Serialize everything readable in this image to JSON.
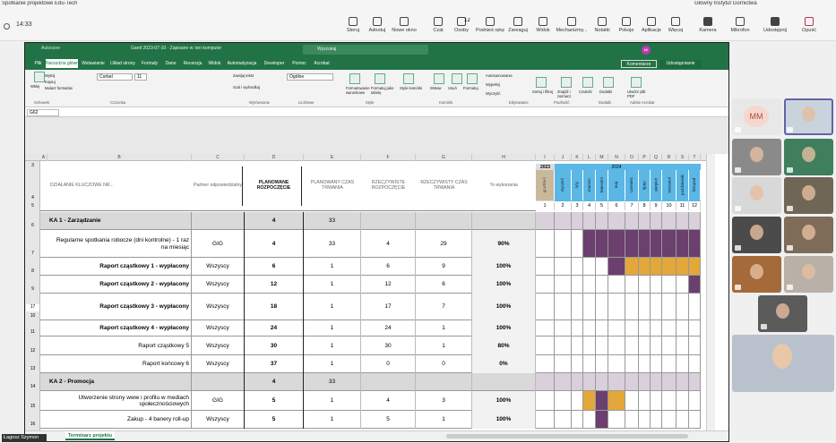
{
  "window": {
    "title": "Spotkanie projektowe Edu-Tech",
    "organization": "Główny Instytut Górnictwa",
    "time": "14:33"
  },
  "toolbar": {
    "buttons": [
      "Steruj",
      "Adnotuj",
      "Nowe okno",
      "Czat",
      "Osoby",
      "Podnieś rękę",
      "Zareaguj",
      "Widok",
      "Mechanizmy...",
      "Notatki",
      "Pokoje",
      "Aplikacje",
      "Więcej",
      "Kamera",
      "Mikrofon",
      "Udostępnij",
      "Opuść"
    ],
    "people_count": "12"
  },
  "excel": {
    "autosave": "Autosave",
    "file_name": "Gantt 2023-07-10 - Zapisane w: ten komputer",
    "search": "Wyszukaj",
    "avatar": "MI",
    "tabs": [
      "Plik",
      "Narzędzia główne",
      "Wstawianie",
      "Układ strony",
      "Formuły",
      "Dane",
      "Recenzja",
      "Widok",
      "Automatyzacja",
      "Developer",
      "Pomoc",
      "Acrobat"
    ],
    "comments": "Komentarze",
    "share": "Udostępnianie",
    "font": "Corbel",
    "font_size": "11",
    "number_format": "Ogólne",
    "ribbon_buttons": [
      "Wklej",
      "Wytnij",
      "Kopiuj",
      "Malarz formatów",
      "Zawijaj tekst",
      "Scal i wyśrodkuj",
      "Formatowanie warunkowe",
      "Formatuj jako tabelę",
      "Style komórki",
      "Wstaw",
      "Usuń",
      "Formatuj",
      "Autosumowanie",
      "Wypełnij",
      "Wyczyść",
      "Sortuj i filtruj",
      "Znajdź i zaznacz",
      "Czułość",
      "Dodatki",
      "Utwórz plik PDF"
    ],
    "ribbon_groups": [
      "Schowek",
      "Czcionka",
      "Wyrównanie",
      "Liczbowe",
      "Style",
      "Komórki",
      "Edytowanie",
      "Poufność",
      "Dodatki",
      "Adobe Acrobat"
    ],
    "cell_ref": "G62",
    "sheet_tab": "Terminarz projektu"
  },
  "sheet": {
    "column_letters": [
      "A",
      "B",
      "C",
      "D",
      "E",
      "F",
      "G",
      "H",
      "I",
      "J",
      "K",
      "L",
      "M",
      "N",
      "O",
      "P",
      "Q",
      "R",
      "S",
      "T"
    ],
    "header_row_numbers": [
      "3",
      "4",
      "5"
    ],
    "headers": [
      "DZIAŁANIE KLUCZOWE NR...",
      "Partner odpowiedzialny",
      "PLANOWANE ROZPOCZĘCIE",
      "PLANOWANY CZAS TRWANIA",
      "RZECZYWISTE ROZPOCZĘCIE",
      "RZECZYWISTY CZAS TRWANIA",
      "% wykonania"
    ],
    "year_2023": "2023",
    "year_2024": "2024",
    "months": [
      "grudzień",
      "styczeń",
      "luty",
      "marzec",
      "kwiecień",
      "maj",
      "czerwiec",
      "lipiec",
      "sierpień",
      "wrzesień",
      "październik",
      "listopad"
    ],
    "month_numbers": [
      1,
      2,
      3,
      4,
      5,
      6,
      7,
      8,
      9,
      10,
      11,
      12
    ],
    "outline_number": "17",
    "rows": [
      {
        "row": "6",
        "name": "KA 1 - Zarządzanie",
        "plan_start": 4,
        "plan_duration": 33,
        "section": true
      },
      {
        "row": "7",
        "name": "Regularne spotkania robocze (dni kontrolne) - 1 raz na miesiąc",
        "partner": "GIG",
        "plan_start": 4,
        "plan_duration": 33,
        "actual_start": 4,
        "actual_duration": 29,
        "completion": "90%"
      },
      {
        "row": "8",
        "name": "Raport cząstkowy 1 - wypłacony",
        "partner": "Wszyscy",
        "plan_start": 6,
        "plan_duration": 1,
        "actual_start": 6,
        "actual_duration": 9,
        "completion": "100%",
        "bold": true
      },
      {
        "row": "9",
        "name": "Raport cząstkowy 2 - wypłacony",
        "partner": "Wszyscy",
        "plan_start": 12,
        "plan_duration": 1,
        "actual_start": 12,
        "actual_duration": 6,
        "completion": "100%",
        "bold": true
      },
      {
        "row": "10",
        "name": "Raport cząstkowy 3 - wypłacony",
        "partner": "Wszyscy",
        "plan_start": 18,
        "plan_duration": 1,
        "actual_start": 17,
        "actual_duration": 7,
        "completion": "100%",
        "bold": true
      },
      {
        "row": "11",
        "name": "Raport cząstkowy 4 - wypłacony",
        "partner": "Wszyscy",
        "plan_start": 24,
        "plan_duration": 1,
        "actual_start": 24,
        "actual_duration": 1,
        "completion": "100%",
        "bold": true
      },
      {
        "row": "12",
        "name": "Raport cząstkowy 5",
        "partner": "Wszyscy",
        "plan_start": 30,
        "plan_duration": 1,
        "actual_start": 30,
        "actual_duration": 1,
        "completion": "80%"
      },
      {
        "row": "13",
        "name": "Raport końcowy 6",
        "partner": "Wszyscy",
        "plan_start": 37,
        "plan_duration": 1,
        "actual_start": 0,
        "actual_duration": 0,
        "completion": "0%"
      },
      {
        "row": "14",
        "name": "KA 2 - Promocja",
        "plan_start": 4,
        "plan_duration": 33,
        "section": true
      },
      {
        "row": "15",
        "name": "Utworzenie strony www i profilu w mediach społecznościowych",
        "partner": "GIG",
        "plan_start": 5,
        "plan_duration": 1,
        "actual_start": 4,
        "actual_duration": 3,
        "completion": "100%"
      },
      {
        "row": "16",
        "name": "Zakup - 4 banery roll-up",
        "partner": "Wszyscy",
        "plan_start": 5,
        "plan_duration": 1,
        "actual_start": 5,
        "actual_duration": 1,
        "completion": "100%"
      }
    ]
  },
  "participants": {
    "initials": "MM",
    "presenter": "Łagosz Szymon"
  }
}
